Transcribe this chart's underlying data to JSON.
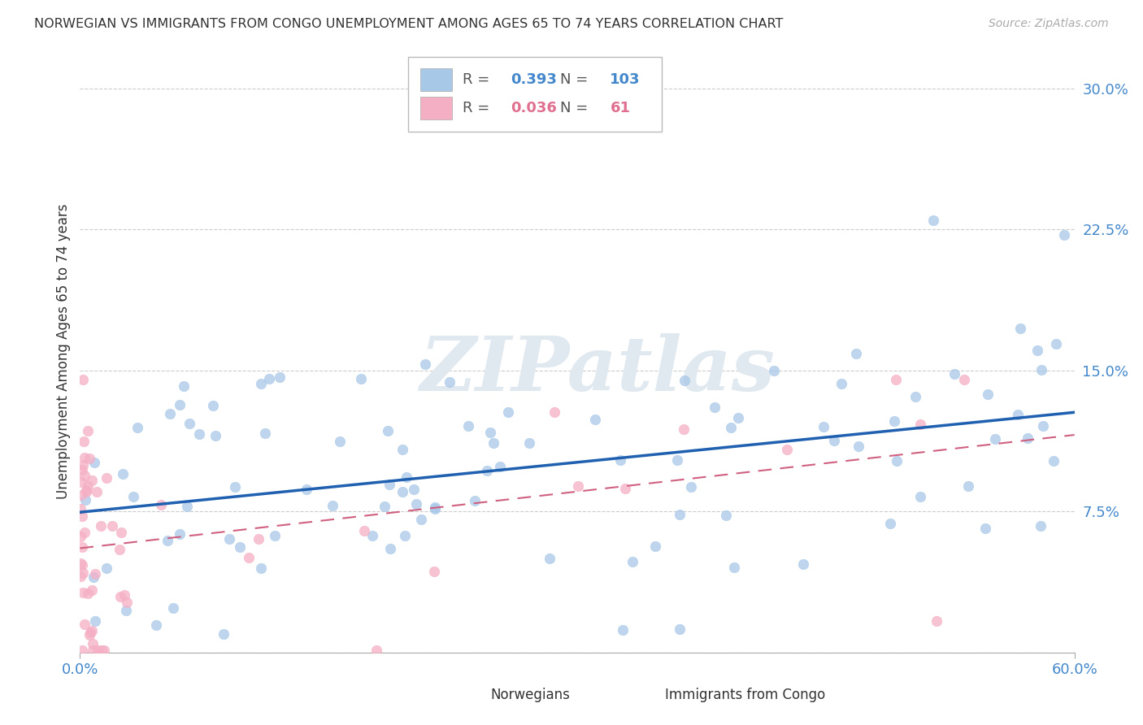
{
  "title": "NORWEGIAN VS IMMIGRANTS FROM CONGO UNEMPLOYMENT AMONG AGES 65 TO 74 YEARS CORRELATION CHART",
  "source": "Source: ZipAtlas.com",
  "ylabel": "Unemployment Among Ages 65 to 74 years",
  "legend1_label": "Norwegians",
  "legend2_label": "Immigrants from Congo",
  "R1": 0.393,
  "N1": 103,
  "R2": 0.036,
  "N2": 61,
  "xlim": [
    0.0,
    0.6
  ],
  "ylim": [
    0.0,
    0.32
  ],
  "yticks": [
    0.0,
    0.075,
    0.15,
    0.225,
    0.3
  ],
  "background_color": "#ffffff",
  "dot_color_norwegian": "#a8c8e8",
  "dot_color_congo": "#f5afc5",
  "line_color_norwegian": "#2060b0",
  "line_color_congo": "#d06080",
  "watermark_color": "#e0e8f0",
  "watermark": "ZIPatlas"
}
